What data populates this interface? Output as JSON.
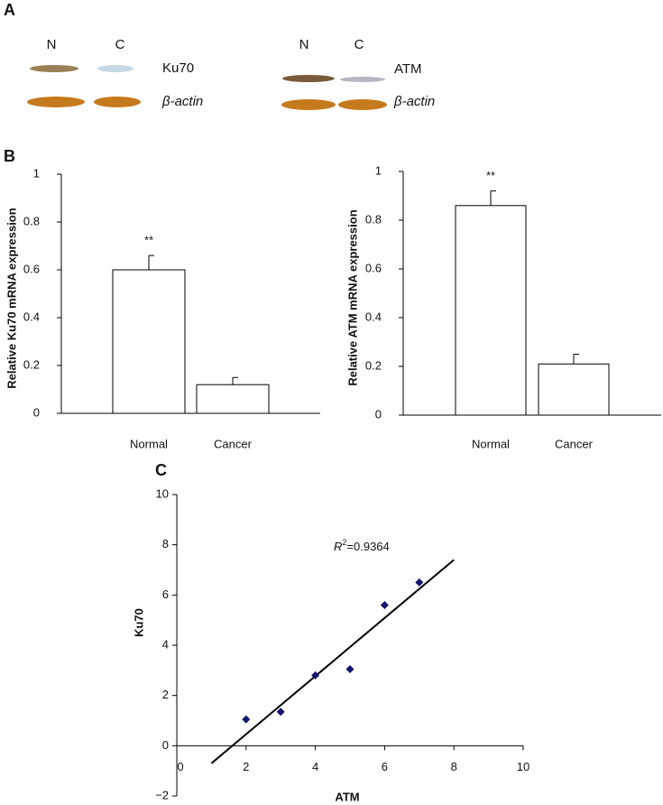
{
  "panels": [
    "A",
    "B",
    "C"
  ],
  "blots": [
    {
      "lanes": [
        "N",
        "C"
      ],
      "protein": "Ku70",
      "control": "β-actin"
    },
    {
      "lanes": [
        "N",
        "C"
      ],
      "protein": "ATM",
      "control": "β-actin"
    }
  ],
  "chart_data": [
    {
      "type": "bar",
      "ylabel": "Relative Ku70 mRNA expression",
      "categories": [
        "Normal",
        "Cancer"
      ],
      "values": [
        0.6,
        0.12
      ],
      "errors": [
        0.06,
        0.03
      ],
      "value_annotations": [
        "**",
        null
      ],
      "color": "#ffffff",
      "ylim": [
        0,
        1
      ],
      "yticks": [
        0,
        0.2,
        0.4,
        0.6,
        0.8,
        1
      ]
    },
    {
      "type": "bar",
      "ylabel": "Relative ATM mRNA expression",
      "categories": [
        "Normal",
        "Cancer"
      ],
      "values": [
        0.86,
        0.21
      ],
      "errors": [
        0.06,
        0.04
      ],
      "value_annotations": [
        "**",
        null
      ],
      "color": "#ffffff",
      "ylim": [
        0,
        1
      ],
      "yticks": [
        0,
        0.2,
        0.4,
        0.6,
        0.8,
        1
      ]
    },
    {
      "type": "scatter",
      "xlabel": "ATM",
      "ylabel": "Ku70",
      "x": [
        2,
        3,
        4,
        5,
        6,
        7
      ],
      "y": [
        1.05,
        1.35,
        2.8,
        3.05,
        5.6,
        6.5
      ],
      "color": "#14146e",
      "fit_line": {
        "x": [
          1,
          8
        ],
        "y": [
          -0.7,
          7.4
        ]
      },
      "annotation": {
        "symbol": "R",
        "exponent": "2",
        "text": "=0.9364"
      },
      "xlim": [
        0,
        10
      ],
      "xticks": [
        0,
        2,
        4,
        6,
        8,
        10
      ],
      "ylim": [
        -2,
        10
      ],
      "yticks": [
        {
          "value": -2,
          "label": "−2"
        },
        0,
        2,
        4,
        6,
        8,
        10
      ]
    }
  ]
}
